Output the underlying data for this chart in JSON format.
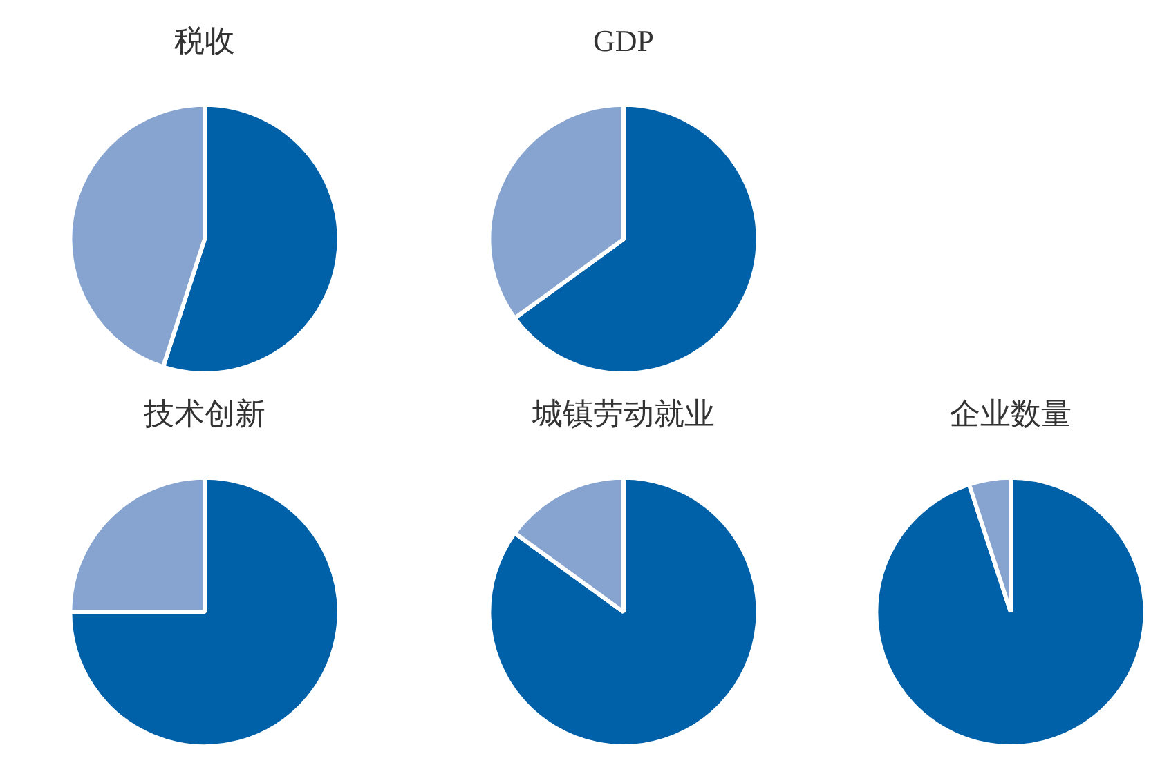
{
  "chart_data": [
    {
      "type": "pie",
      "title": "税收",
      "categories": [
        null,
        null
      ],
      "values": [
        55,
        45
      ],
      "colors": [
        "#0060a8",
        "#86a4cf"
      ]
    },
    {
      "type": "pie",
      "title": "GDP",
      "categories": [
        null,
        null
      ],
      "values": [
        65,
        35
      ],
      "colors": [
        "#0060a8",
        "#86a4cf"
      ]
    },
    {
      "type": "pie",
      "title": "技术创新",
      "categories": [
        null,
        null
      ],
      "values": [
        75,
        25
      ],
      "colors": [
        "#0060a8",
        "#86a4cf"
      ]
    },
    {
      "type": "pie",
      "title": "城镇劳动就业",
      "categories": [
        null,
        null
      ],
      "values": [
        85,
        15
      ],
      "colors": [
        "#0060a8",
        "#86a4cf"
      ]
    },
    {
      "type": "pie",
      "title": "企业数量",
      "categories": [
        null,
        null
      ],
      "values": [
        95,
        5
      ],
      "colors": [
        "#0060a8",
        "#86a4cf"
      ]
    }
  ]
}
